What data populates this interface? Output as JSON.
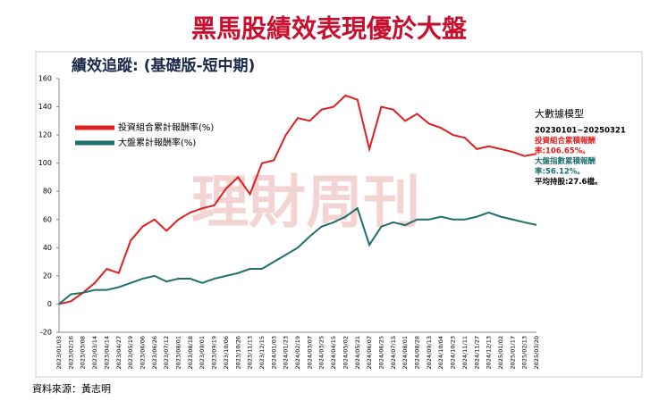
{
  "page_title": "黑馬股績效表現優於大盤",
  "source": "資料來源：黃志明",
  "watermark": "理財周刊",
  "notes": [
    {
      "text": "大數據模型",
      "color": "#000000"
    },
    {
      "text": "20230101~20250321",
      "color": "#000000"
    },
    {
      "text": "投資組合累積報酬",
      "color": "#e02020"
    },
    {
      "text": "率:106.65%。",
      "color": "#e02020"
    },
    {
      "text": "大盤指數累積報酬",
      "color": "#1f6f6a"
    },
    {
      "text": "率:56.12%。",
      "color": "#1f6f6a"
    },
    {
      "text": "平均持股:27.6檔。",
      "color": "#000000"
    }
  ],
  "chart_data": {
    "type": "line",
    "title": "績效追蹤: (基礎版-短中期)",
    "categories": [
      "2023/01/03",
      "2023/02/16",
      "2023/03/08",
      "2023/03/14",
      "2023/04/14",
      "2023/04/27",
      "2023/05/19",
      "2023/06/06",
      "2023/06/26",
      "2023/07/12",
      "2023/08/01",
      "2023/08/18",
      "2023/09/01",
      "2023/09/19",
      "2023/10/06",
      "2023/10/26",
      "2023/11/13",
      "2023/12/15",
      "2024/01/03",
      "2024/01/23",
      "2024/02/19",
      "2024/03/07",
      "2024/03/25",
      "2024/04/15",
      "2024/05/02",
      "2024/05/21",
      "2024/06/07",
      "2024/06/25",
      "2024/07/15",
      "2024/08/01",
      "2024/08/28",
      "2024/09/13",
      "2024/10/04",
      "2024/10/23",
      "2024/11/11",
      "2024/11/27",
      "2024/12/13",
      "2025/01/02",
      "2025/01/17",
      "2025/02/13",
      "2025/03/20"
    ],
    "series": [
      {
        "name": "投資組合累計報酬率(%)",
        "color": "#e02020",
        "values": [
          0,
          2,
          8,
          15,
          25,
          22,
          45,
          55,
          60,
          52,
          60,
          65,
          68,
          70,
          82,
          90,
          78,
          100,
          102,
          120,
          132,
          130,
          138,
          140,
          148,
          145,
          110,
          140,
          138,
          130,
          135,
          128,
          125,
          120,
          118,
          110,
          112,
          110,
          108,
          105,
          106.65
        ]
      },
      {
        "name": "大盤累計報酬率(%)",
        "color": "#1f6f6a",
        "values": [
          0,
          7,
          8,
          10,
          10,
          12,
          15,
          18,
          20,
          16,
          18,
          18,
          15,
          18,
          20,
          22,
          25,
          25,
          30,
          35,
          40,
          48,
          55,
          58,
          62,
          68,
          42,
          55,
          58,
          56,
          60,
          60,
          62,
          60,
          60,
          62,
          65,
          62,
          60,
          58,
          56.12
        ]
      }
    ],
    "ylim": [
      -20,
      160
    ],
    "yticks": [
      -20,
      0,
      20,
      40,
      60,
      80,
      100,
      120,
      140,
      160
    ],
    "grid": false,
    "legend": "upper-left"
  }
}
